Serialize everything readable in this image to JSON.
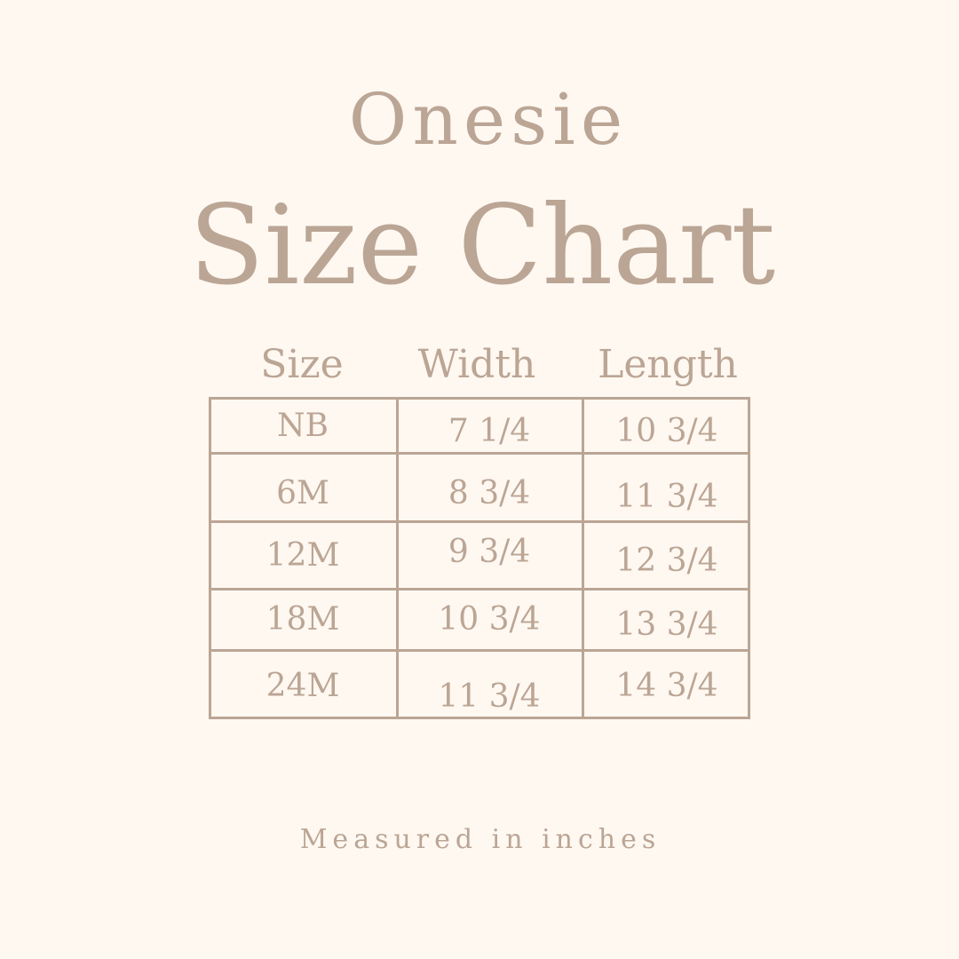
{
  "subtitle": "Onesie",
  "title": "Size Chart",
  "table": {
    "headers": [
      "Size",
      "Width",
      "Length"
    ],
    "rows": [
      [
        "NB",
        "7 1/4",
        "10 3/4"
      ],
      [
        "6M",
        "8 3/4",
        "11 3/4"
      ],
      [
        "12M",
        "9 3/4",
        "12 3/4"
      ],
      [
        "18M",
        "10 3/4",
        "13 3/4"
      ],
      [
        "24M",
        "11 3/4",
        "14 3/4"
      ]
    ]
  },
  "footer": "Measured in inches",
  "colors": {
    "background": "#fef8f1",
    "text": "#bba594"
  }
}
